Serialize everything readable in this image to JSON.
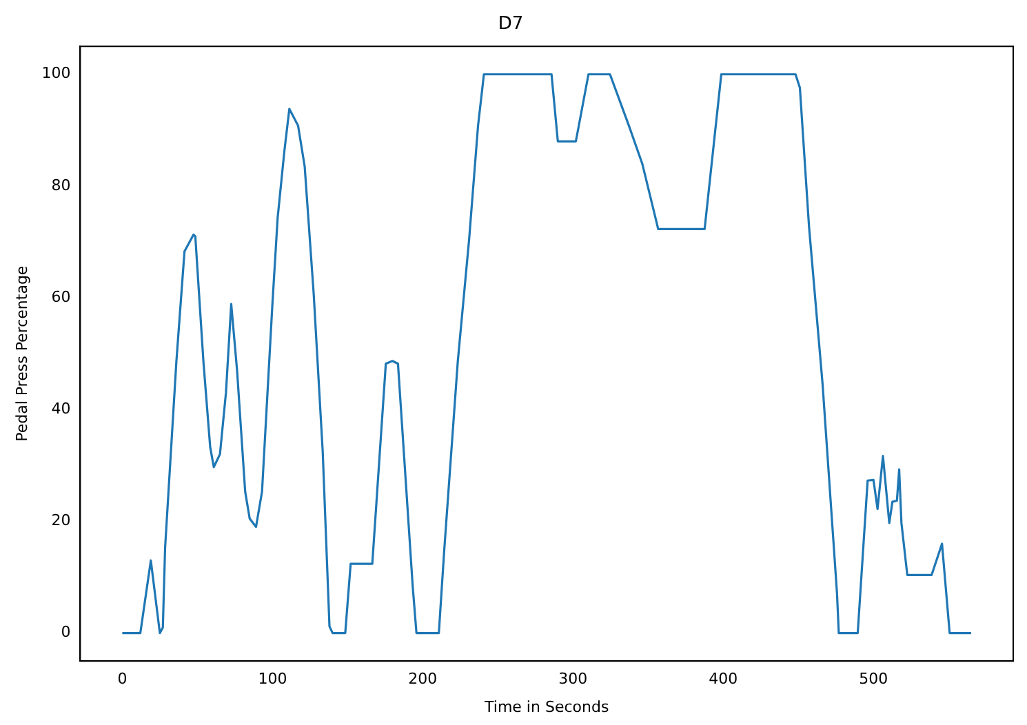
{
  "chart_data": {
    "type": "line",
    "title": "D7",
    "xlabel": "Time in Seconds",
    "ylabel": "Pedal Press Percentage",
    "x": [
      0,
      12,
      19,
      25,
      27,
      28.5,
      36,
      41.4,
      47.4,
      48.6,
      54,
      58.5,
      60.9,
      65,
      69,
      72.5,
      76.4,
      81.8,
      84.8,
      89,
      93,
      99.8,
      103.4,
      107.9,
      111.2,
      117,
      121.4,
      127.4,
      133.4,
      137.9,
      140,
      148.4,
      152,
      166.4,
      175.4,
      179.8,
      183.5,
      193.3,
      195.8,
      210.7,
      214.3,
      223.3,
      230.8,
      236.8,
      240.7,
      285.7,
      289.9,
      301.9,
      310.3,
      324.6,
      337.2,
      346.2,
      356.7,
      387.6,
      398.7,
      448.1,
      451,
      457.1,
      466.1,
      475.7,
      476.9,
      489.5,
      496.1,
      500,
      502.7,
      506.3,
      510.5,
      512.6,
      515.6,
      517.1,
      518.6,
      522.5,
      538.7,
      545.6,
      550.7,
      565
    ],
    "series": [
      {
        "color": "#1f77b4",
        "values": [
          0,
          0,
          13,
          0,
          1,
          15.3,
          48.6,
          68.3,
          71.3,
          71,
          48.6,
          33.3,
          29.7,
          32,
          43,
          58.9,
          47,
          25.3,
          20.5,
          19,
          25.3,
          58.3,
          74.3,
          86.3,
          93.8,
          90.8,
          83.5,
          60.7,
          32.5,
          1.2,
          0,
          0,
          12.4,
          12.4,
          48.2,
          48.7,
          48.2,
          8.4,
          0,
          0,
          14.9,
          48.6,
          70.3,
          90.8,
          100,
          100,
          88,
          88,
          100,
          100,
          90.8,
          83.9,
          72.3,
          72.3,
          100,
          100,
          97.6,
          72.7,
          44.6,
          7.2,
          0,
          0,
          27.3,
          27.4,
          22.2,
          31.7,
          19.7,
          23.5,
          23.7,
          29.3,
          19.7,
          10.4,
          10.4,
          16,
          0,
          0
        ]
      }
    ],
    "xlim": [
      -28,
      593
    ],
    "ylim": [
      -5,
      105
    ],
    "xticks": [
      0,
      100,
      200,
      300,
      400,
      500
    ],
    "yticks": [
      0,
      20,
      40,
      60,
      80,
      100
    ],
    "grid": false,
    "legend": false,
    "marker": "none",
    "line_style": "solid"
  }
}
